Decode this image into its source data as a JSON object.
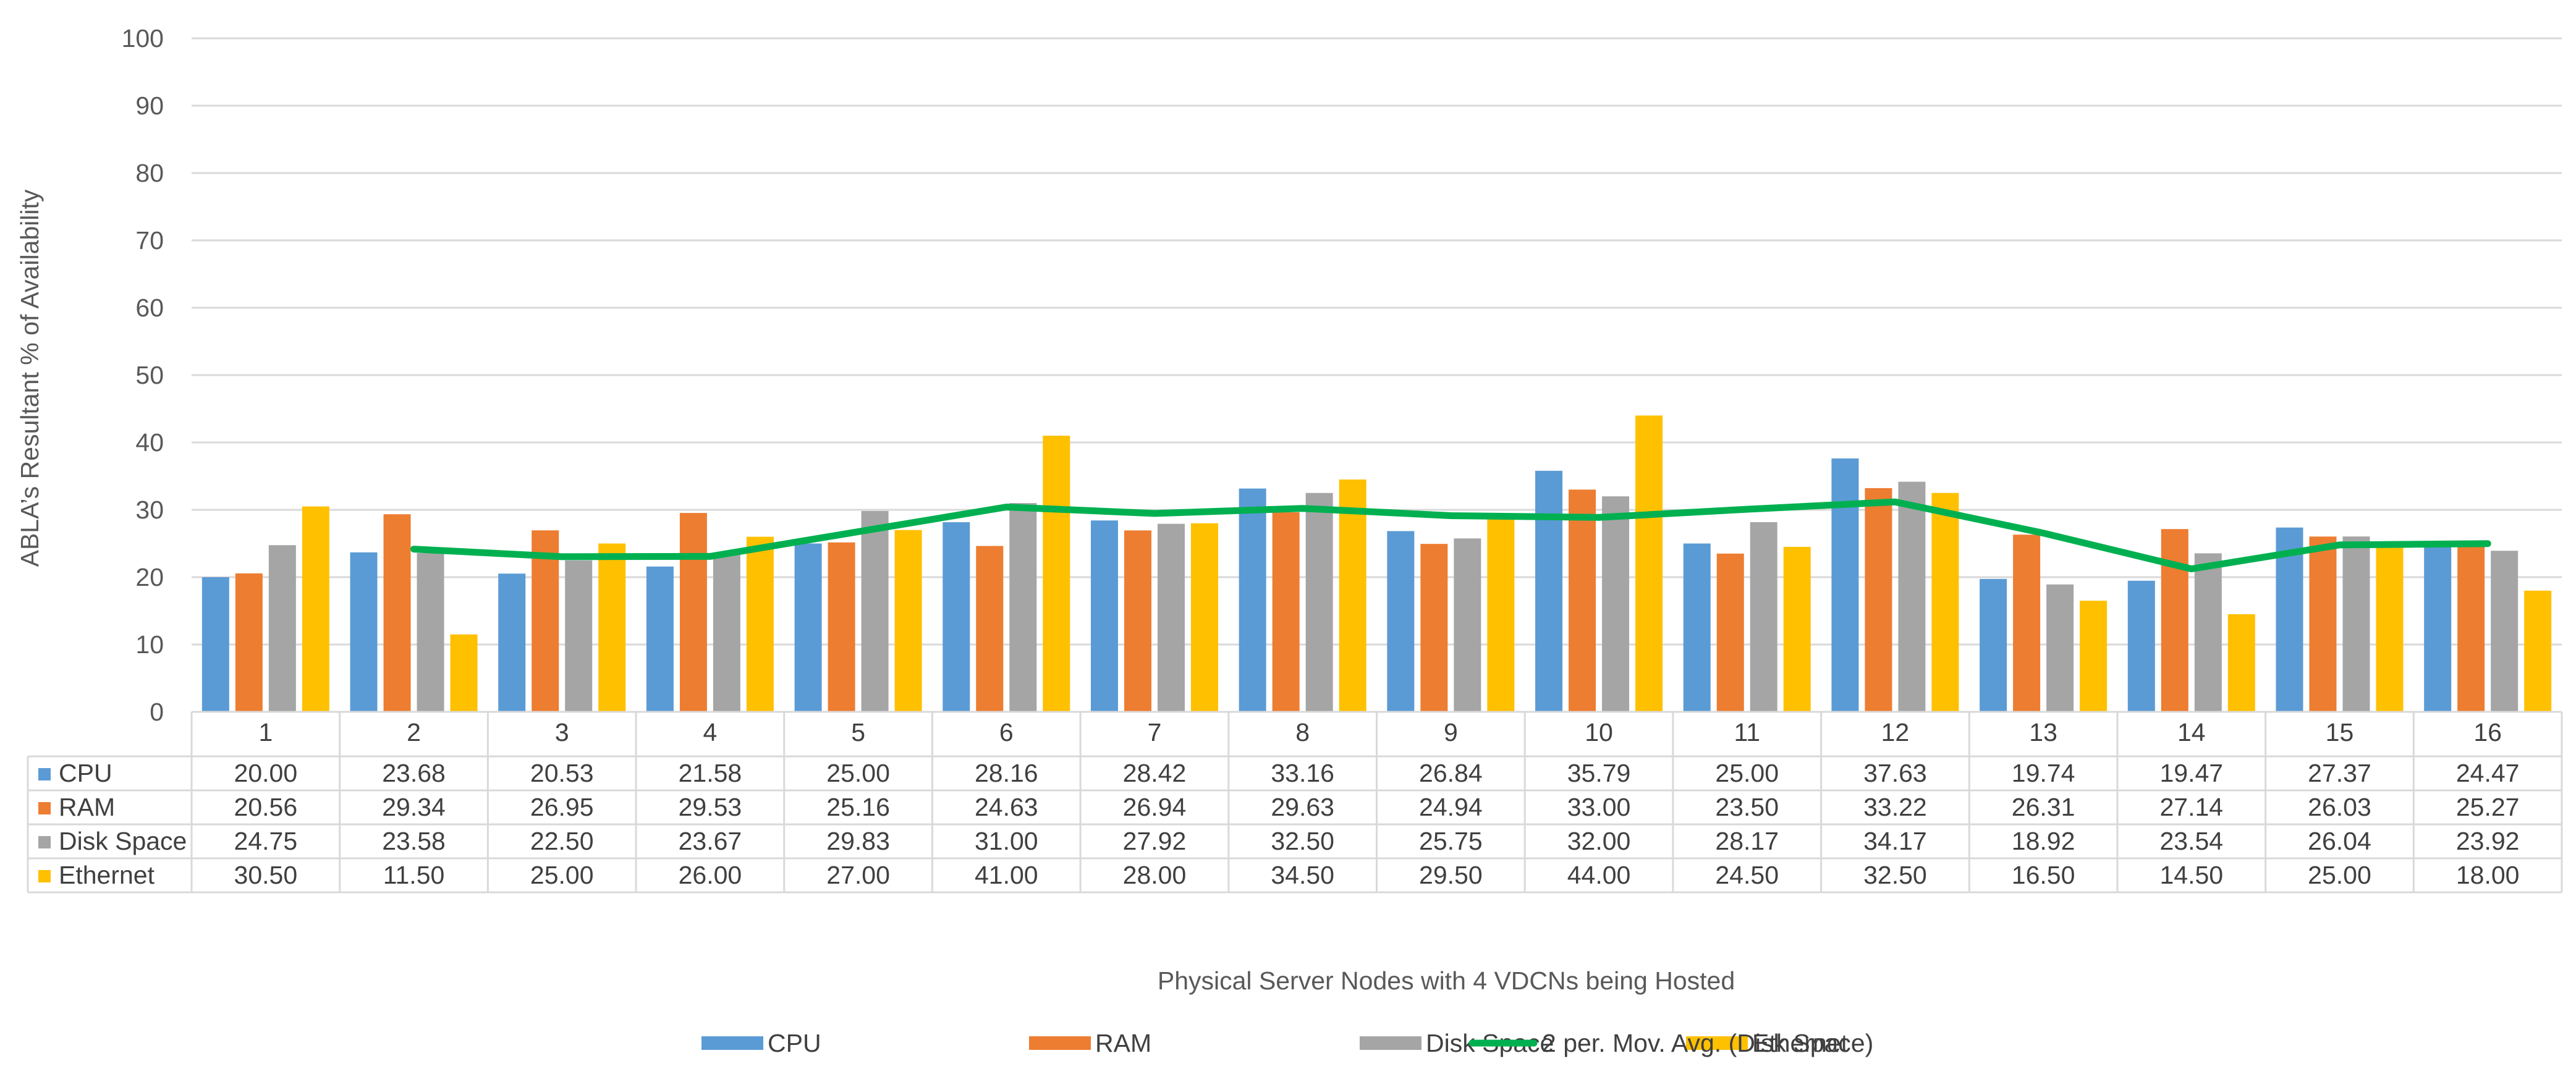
{
  "chart_data": {
    "type": "bar",
    "title": "",
    "xlabel": "Physical Server Nodes with 4 VDCNs being Hosted",
    "ylabel": "ABLA’s Resultant % of Availability",
    "ylim": [
      0,
      100
    ],
    "yticks": [
      0,
      10,
      20,
      30,
      40,
      50,
      60,
      70,
      80,
      90,
      100
    ],
    "grid": true,
    "legend_position": "bottom",
    "categories": [
      "1",
      "2",
      "3",
      "4",
      "5",
      "6",
      "7",
      "8",
      "9",
      "10",
      "11",
      "12",
      "13",
      "14",
      "15",
      "16"
    ],
    "series": [
      {
        "name": "CPU",
        "color": "#5B9BD5",
        "values": [
          20.0,
          23.68,
          20.53,
          21.58,
          25.0,
          28.16,
          28.42,
          33.16,
          26.84,
          35.79,
          25.0,
          37.63,
          19.74,
          19.47,
          27.37,
          24.47
        ],
        "labels": [
          "20.00",
          "23.68",
          "20.53",
          "21.58",
          "25.00",
          "28.16",
          "28.42",
          "33.16",
          "26.84",
          "35.79",
          "25.00",
          "37.63",
          "19.74",
          "19.47",
          "27.37",
          "24.47"
        ]
      },
      {
        "name": "RAM",
        "color": "#ED7D31",
        "values": [
          20.56,
          29.34,
          26.95,
          29.53,
          25.16,
          24.63,
          26.94,
          29.63,
          24.94,
          33.0,
          23.5,
          33.22,
          26.31,
          27.14,
          26.03,
          25.27
        ],
        "labels": [
          "20.56",
          "29.34",
          "26.95",
          "29.53",
          "25.16",
          "24.63",
          "26.94",
          "29.63",
          "24.94",
          "33.00",
          "23.50",
          "33.22",
          "26.31",
          "27.14",
          "26.03",
          "25.27"
        ]
      },
      {
        "name": "Disk Space",
        "color": "#A5A5A5",
        "values": [
          24.75,
          23.58,
          22.5,
          23.67,
          29.83,
          31.0,
          27.92,
          32.5,
          25.75,
          32.0,
          28.17,
          34.17,
          18.92,
          23.54,
          26.04,
          23.92
        ],
        "labels": [
          "24.75",
          "23.58",
          "22.50",
          "23.67",
          "29.83",
          "31.00",
          "27.92",
          "32.50",
          "25.75",
          "32.00",
          "28.17",
          "34.17",
          "18.92",
          "23.54",
          "26.04",
          "23.92"
        ]
      },
      {
        "name": "Ethernet",
        "color": "#FFC000",
        "values": [
          30.5,
          11.5,
          25.0,
          26.0,
          27.0,
          41.0,
          28.0,
          34.5,
          29.5,
          44.0,
          24.5,
          32.5,
          16.5,
          14.5,
          25.0,
          18.0
        ],
        "labels": [
          "30.50",
          "11.50",
          "25.00",
          "26.00",
          "27.00",
          "41.00",
          "28.00",
          "34.50",
          "29.50",
          "44.00",
          "24.50",
          "32.50",
          "16.50",
          "14.50",
          "25.00",
          "18.00"
        ]
      }
    ],
    "trendline": {
      "name": "2 per. Mov. Avg. (Disk Space)",
      "type": "line",
      "color": "#00B050",
      "source_series": "Disk Space",
      "period": 2
    },
    "data_table": {
      "shown": true,
      "rows": [
        "CPU",
        "RAM",
        "Disk Space",
        "Ethernet"
      ]
    }
  }
}
